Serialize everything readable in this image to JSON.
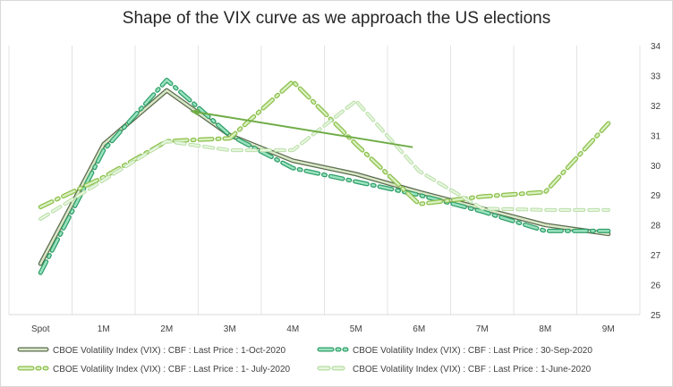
{
  "chart_data": {
    "type": "line",
    "title": "Shape of the VIX curve as we approach the US elections",
    "categories": [
      "Spot",
      "1M",
      "2M",
      "3M",
      "4M",
      "5M",
      "6M",
      "7M",
      "8M",
      "9M"
    ],
    "y_axis": {
      "position": "right",
      "min": 25,
      "max": 34,
      "ticks": [
        "25",
        "26",
        "27",
        "28",
        "29",
        "30",
        "31",
        "32",
        "33",
        "34"
      ]
    },
    "grid": true,
    "legend_position": "bottom",
    "series": [
      {
        "name": "CBOE Volatility Index (VIX) : CBF : Last Price : 1-Oct-2020",
        "style": "solid",
        "color": "#5b6b4e",
        "fill": "#d9e8c8",
        "values": [
          26.7,
          30.7,
          32.5,
          31.0,
          30.15,
          29.7,
          29.1,
          28.55,
          28.0,
          27.7
        ]
      },
      {
        "name": "CBOE Volatility Index (VIX) : CBF : Last Price : 30-Sep-2020",
        "style": "dashdot",
        "color": "#2e9e68",
        "fill": "#9be3c0",
        "values": [
          26.4,
          30.5,
          32.85,
          31.0,
          29.9,
          29.45,
          29.0,
          28.45,
          27.8,
          27.8
        ]
      },
      {
        "name": "CBOE Volatility Index (VIX) : CBF : Last Price : 1- July-2020",
        "style": "dashdot",
        "color": "#8bbf4a",
        "fill": "#d9f0c0",
        "values": [
          28.6,
          29.6,
          30.8,
          30.9,
          32.8,
          30.7,
          28.7,
          28.95,
          29.1,
          31.4
        ]
      },
      {
        "name": "CBOE Volatility Index (VIX) : CBF : Last Price : 1-June-2020",
        "style": "dashed",
        "color": "#b3dca0",
        "fill": "#e8f6e0",
        "values": [
          28.2,
          29.5,
          30.8,
          30.5,
          30.5,
          32.15,
          29.8,
          28.55,
          28.5,
          28.5
        ]
      }
    ],
    "annotation": {
      "type": "arrow",
      "from": {
        "x": 5.9,
        "y": 30.6
      },
      "to": {
        "x": 2.4,
        "y": 31.8
      },
      "color": "#70ad47"
    }
  }
}
